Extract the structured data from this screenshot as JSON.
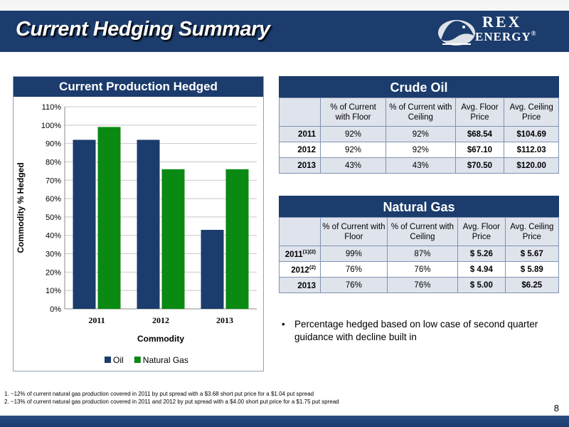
{
  "header": {
    "title": "Current Hedging Summary",
    "logo_line1": "REX",
    "logo_line2": "ENERGY",
    "logo_mark": "®"
  },
  "chart_data": {
    "type": "bar",
    "title": "Current Production Hedged",
    "xlabel": "Commodity",
    "ylabel": "Commodity % Hedged",
    "categories": [
      "2011",
      "2012",
      "2013"
    ],
    "ylim": [
      0,
      110
    ],
    "ytick_step": 10,
    "ytick_labels": [
      "0%",
      "10%",
      "20%",
      "30%",
      "40%",
      "50%",
      "60%",
      "70%",
      "80%",
      "90%",
      "100%",
      "110%"
    ],
    "series": [
      {
        "name": "Oil",
        "color": "#1b3c6c",
        "values": [
          92,
          92,
          43
        ]
      },
      {
        "name": "Natural Gas",
        "color": "#0a8a12",
        "values": [
          99,
          76,
          76
        ]
      }
    ],
    "grid": true,
    "legend_position": "bottom"
  },
  "oil_table": {
    "title": "Crude Oil",
    "headers": [
      "% of Current with Floor",
      "% of Current with Ceiling",
      "Avg. Floor Price",
      "Avg. Ceiling Price"
    ],
    "rows": [
      {
        "label": "2011",
        "sup": "",
        "cells": [
          "92%",
          "92%",
          "$68.54",
          "$104.69"
        ]
      },
      {
        "label": "2012",
        "sup": "",
        "cells": [
          "92%",
          "92%",
          "$67.10",
          "$112.03"
        ]
      },
      {
        "label": "2013",
        "sup": "",
        "cells": [
          "43%",
          "43%",
          "$70.50",
          "$120.00"
        ]
      }
    ]
  },
  "gas_table": {
    "title": "Natural Gas",
    "headers": [
      "% of Current with Floor",
      "% of Current with Ceiling",
      "Avg. Floor Price",
      "Avg. Ceiling Price"
    ],
    "rows": [
      {
        "label": "2011",
        "sup": "(1)(2)",
        "cells": [
          "99%",
          "87%",
          "$ 5.26",
          "$ 5.67"
        ]
      },
      {
        "label": "2012",
        "sup": "(2)",
        "cells": [
          "76%",
          "76%",
          "$ 4.94",
          "$ 5.89"
        ]
      },
      {
        "label": "2013",
        "sup": "",
        "cells": [
          "76%",
          "76%",
          "$ 5.00",
          "$6.25"
        ]
      }
    ]
  },
  "bullet": {
    "marker": "•",
    "text": "Percentage hedged based on low case of second quarter guidance with decline built in"
  },
  "footnotes": [
    "1. ~12% of current natural gas production covered in 2011 by put spread with a $3.68 short put price for a $1.04 put spread",
    "2. ~13% of current natural gas production covered in 2011 and 2012 by put spread with a $4.00 short put price for a $1.75 put spread"
  ],
  "page_number": "8"
}
